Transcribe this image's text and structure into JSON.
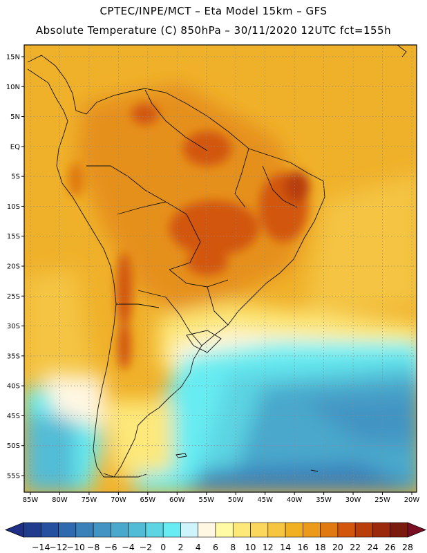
{
  "header": {
    "line1": "CPTEC/INPE/MCT –  Eta Model 15km – GFS",
    "line2": "Absolute Temperature (C) 850hPa – 30/11/2020 12UTC fct=155h"
  },
  "map": {
    "lat_labels": [
      "15N",
      "10N",
      "5N",
      "EQ",
      "5S",
      "10S",
      "15S",
      "20S",
      "25S",
      "30S",
      "35S",
      "40S",
      "45S",
      "50S",
      "55S"
    ],
    "lon_labels": [
      "85W",
      "80W",
      "75W",
      "70W",
      "65W",
      "60W",
      "55W",
      "50W",
      "45W",
      "40W",
      "35W",
      "30W",
      "25W",
      "20W"
    ]
  },
  "colorbar": {
    "labels": [
      "−14",
      "−12",
      "−10",
      "−8",
      "−6",
      "−4",
      "−2",
      "0",
      "2",
      "4",
      "6",
      "8",
      "10",
      "12",
      "14",
      "16",
      "18",
      "20",
      "22",
      "24",
      "26",
      "28"
    ],
    "colors": [
      "#1f3d8c",
      "#2550a0",
      "#2f6aae",
      "#3a80b9",
      "#4294c2",
      "#4aa8cc",
      "#52bcd6",
      "#5cd4e2",
      "#66ecf2",
      "#cdf3fb",
      "#fff7e2",
      "#fffaa3",
      "#fde87a",
      "#fbd75c",
      "#f6c542",
      "#f1af22",
      "#eb9a1a",
      "#e07a10",
      "#d2560b",
      "#b83e0a",
      "#9a280a",
      "#7a1a0c"
    ],
    "low_color": "#1f2f85",
    "high_color": "#7a0d22"
  }
}
